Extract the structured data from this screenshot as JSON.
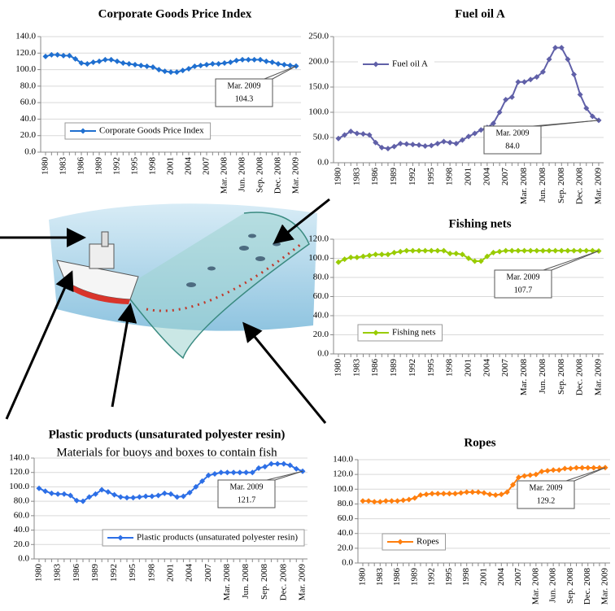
{
  "chart_data": [
    {
      "type": "line",
      "title": "Corporate Goods Price Index",
      "categories": [
        "1980",
        null,
        null,
        "1983",
        null,
        null,
        "1986",
        null,
        null,
        "1989",
        null,
        null,
        "1992",
        null,
        null,
        "1995",
        null,
        null,
        "1998",
        null,
        null,
        "2001",
        null,
        null,
        "2004",
        null,
        null,
        "2007",
        null,
        null,
        "Mar. 2008",
        null,
        null,
        "Jun. 2008",
        null,
        null,
        "Sep. 2008",
        null,
        null,
        "Dec. 2008",
        null,
        null,
        "Mar. 2009"
      ],
      "series": [
        {
          "name": "Corporate Goods Price Index",
          "color": "#1f6fd0",
          "values": [
            116,
            118,
            118,
            117,
            117,
            113,
            108,
            107,
            109,
            110,
            112,
            112,
            110,
            108,
            107,
            106,
            105,
            104,
            103,
            100,
            98,
            97,
            97,
            99,
            101,
            104,
            105,
            106,
            107,
            107,
            108,
            109,
            111,
            112,
            112,
            112,
            112,
            110,
            109,
            107,
            106,
            105,
            104.3
          ]
        }
      ],
      "ylim": [
        0,
        140
      ],
      "yticks": [
        {
          "value": 0,
          "label": "0.0"
        },
        {
          "value": 20,
          "label": "20.0"
        },
        {
          "value": 40,
          "label": "40.0"
        },
        {
          "value": 60,
          "label": "60.0"
        },
        {
          "value": 80,
          "label": "80.0"
        },
        {
          "value": 100,
          "label": "100.0"
        },
        {
          "value": 120,
          "label": "120.0"
        },
        {
          "value": 140,
          "label": "140.0"
        }
      ],
      "grid": true,
      "legend": "lower left",
      "annotation": [
        "Mar. 2009",
        "104.3"
      ]
    },
    {
      "type": "line",
      "title": "Fuel oil A",
      "categories": [
        "1980",
        null,
        null,
        "1983",
        null,
        null,
        "1986",
        null,
        null,
        "1989",
        null,
        null,
        "1992",
        null,
        null,
        "1995",
        null,
        null,
        "1998",
        null,
        null,
        "2001",
        null,
        null,
        "2004",
        null,
        null,
        "2007",
        null,
        null,
        "Mar. 2008",
        null,
        null,
        "Jun. 2008",
        null,
        null,
        "Sep. 2008",
        null,
        null,
        "Dec. 2008",
        null,
        null,
        "Mar. 2009"
      ],
      "series": [
        {
          "name": "Fuel oil A",
          "color": "#6060a8",
          "values": [
            48,
            55,
            62,
            58,
            57,
            55,
            40,
            30,
            28,
            32,
            38,
            37,
            36,
            35,
            33,
            34,
            38,
            42,
            40,
            38,
            45,
            52,
            58,
            65,
            70,
            78,
            100,
            125,
            130,
            160,
            160,
            165,
            170,
            180,
            205,
            228,
            228,
            205,
            175,
            135,
            108,
            92,
            84
          ]
        }
      ],
      "ylim": [
        0,
        250
      ],
      "yticks": [
        {
          "value": 0,
          "label": "0.0"
        },
        {
          "value": 50,
          "label": "50.0"
        },
        {
          "value": 100,
          "label": "100.0"
        },
        {
          "value": 150,
          "label": "150.0"
        },
        {
          "value": 200,
          "label": "200.0"
        },
        {
          "value": 250,
          "label": "250.0"
        }
      ],
      "grid": true,
      "legend": "upper left",
      "annotation": [
        "Mar. 2009",
        "84.0"
      ]
    },
    {
      "type": "line",
      "title": "Fishing nets",
      "categories": [
        "1980",
        null,
        null,
        "1983",
        null,
        null,
        "1986",
        null,
        null,
        "1989",
        null,
        null,
        "1992",
        null,
        null,
        "1995",
        null,
        null,
        "1998",
        null,
        null,
        "2001",
        null,
        null,
        "2004",
        null,
        null,
        "2007",
        null,
        null,
        "Mar. 2008",
        null,
        null,
        "Jun. 2008",
        null,
        null,
        "Sep. 2008",
        null,
        null,
        "Dec. 2008",
        null,
        null,
        "Mar. 2009"
      ],
      "series": [
        {
          "name": "Fishing nets",
          "color": "#99cc00",
          "values": [
            96,
            99,
            101,
            101,
            102,
            103,
            104,
            104,
            104,
            106,
            107,
            108,
            108,
            108,
            108,
            108,
            108,
            108,
            105,
            105,
            104,
            100,
            97,
            97,
            102,
            106,
            107,
            108,
            108,
            108,
            108,
            108,
            108,
            108,
            108,
            108,
            108,
            108,
            108,
            108,
            108,
            108,
            107.7
          ]
        }
      ],
      "ylim": [
        0,
        120
      ],
      "yticks": [
        {
          "value": 0,
          "label": "0.0"
        },
        {
          "value": 20,
          "label": "20.0"
        },
        {
          "value": 40,
          "label": "40.0"
        },
        {
          "value": 60,
          "label": "60.0"
        },
        {
          "value": 80,
          "label": "80.0"
        },
        {
          "value": 100,
          "label": "100.0"
        },
        {
          "value": 120,
          "label": "120.0"
        }
      ],
      "grid": true,
      "legend": "lower left",
      "annotation": [
        "Mar. 2009",
        "107.7"
      ]
    },
    {
      "type": "line",
      "title": "Plastic products (unsaturated polyester resin)",
      "subtitle": "Materials for buoys and boxes to contain fish",
      "categories": [
        "1980",
        null,
        null,
        "1983",
        null,
        null,
        "1986",
        null,
        null,
        "1989",
        null,
        null,
        "1992",
        null,
        null,
        "1995",
        null,
        null,
        "1998",
        null,
        null,
        "2001",
        null,
        null,
        "2004",
        null,
        null,
        "2007",
        null,
        null,
        "Mar. 2008",
        null,
        null,
        "Jun. 2008",
        null,
        null,
        "Sep. 2008",
        null,
        null,
        "Dec. 2008",
        null,
        null,
        "Mar. 2009"
      ],
      "series": [
        {
          "name": "Plastic products (unsaturated polyester resin)",
          "color": "#2d6fe6",
          "values": [
            98,
            94,
            91,
            90,
            90,
            88,
            81,
            80,
            86,
            90,
            96,
            93,
            89,
            86,
            85,
            85,
            86,
            87,
            87,
            88,
            91,
            90,
            86,
            87,
            92,
            100,
            108,
            116,
            118,
            120,
            120,
            120,
            120,
            120,
            120,
            126,
            128,
            132,
            132,
            132,
            130,
            125,
            121.7
          ]
        }
      ],
      "ylim": [
        0,
        140
      ],
      "yticks": [
        {
          "value": 0,
          "label": "0.0"
        },
        {
          "value": 20,
          "label": "20.0"
        },
        {
          "value": 40,
          "label": "40.0"
        },
        {
          "value": 60,
          "label": "60.0"
        },
        {
          "value": 80,
          "label": "80.0"
        },
        {
          "value": 100,
          "label": "100.0"
        },
        {
          "value": 120,
          "label": "120.0"
        },
        {
          "value": 140,
          "label": "140.0"
        }
      ],
      "grid": true,
      "legend": "lower right",
      "annotation": [
        "Mar. 2009",
        "121.7"
      ]
    },
    {
      "type": "line",
      "title": "Ropes",
      "categories": [
        "1980",
        null,
        null,
        "1983",
        null,
        null,
        "1986",
        null,
        null,
        "1989",
        null,
        null,
        "1992",
        null,
        null,
        "1995",
        null,
        null,
        "1998",
        null,
        null,
        "2001",
        null,
        null,
        "2004",
        null,
        null,
        "2007",
        null,
        null,
        "Mar. 2008",
        null,
        null,
        "Jun. 2008",
        null,
        null,
        "Sep. 2008",
        null,
        null,
        "Dec. 2008",
        null,
        null,
        "Mar. 2009"
      ],
      "series": [
        {
          "name": "Ropes",
          "color": "#ff7f0e",
          "values": [
            84,
            84,
            83,
            83,
            84,
            84,
            84,
            85,
            86,
            88,
            92,
            93,
            94,
            94,
            94,
            94,
            94,
            95,
            96,
            96,
            96,
            95,
            93,
            92,
            93,
            96,
            106,
            116,
            118,
            119,
            120,
            124,
            125,
            126,
            126,
            128,
            128,
            129,
            129,
            129,
            129,
            129,
            129.2
          ]
        }
      ],
      "ylim": [
        0,
        140
      ],
      "yticks": [
        {
          "value": 0,
          "label": "0.0"
        },
        {
          "value": 20,
          "label": "20.0"
        },
        {
          "value": 40,
          "label": "40.0"
        },
        {
          "value": 60,
          "label": "60.0"
        },
        {
          "value": 80,
          "label": "80.0"
        },
        {
          "value": 100,
          "label": "100.0"
        },
        {
          "value": 120,
          "label": "120.0"
        },
        {
          "value": 140,
          "label": "140.0"
        }
      ],
      "grid": true,
      "legend": "lower left",
      "annotation": [
        "Mar. 2009",
        "129.2"
      ]
    }
  ]
}
